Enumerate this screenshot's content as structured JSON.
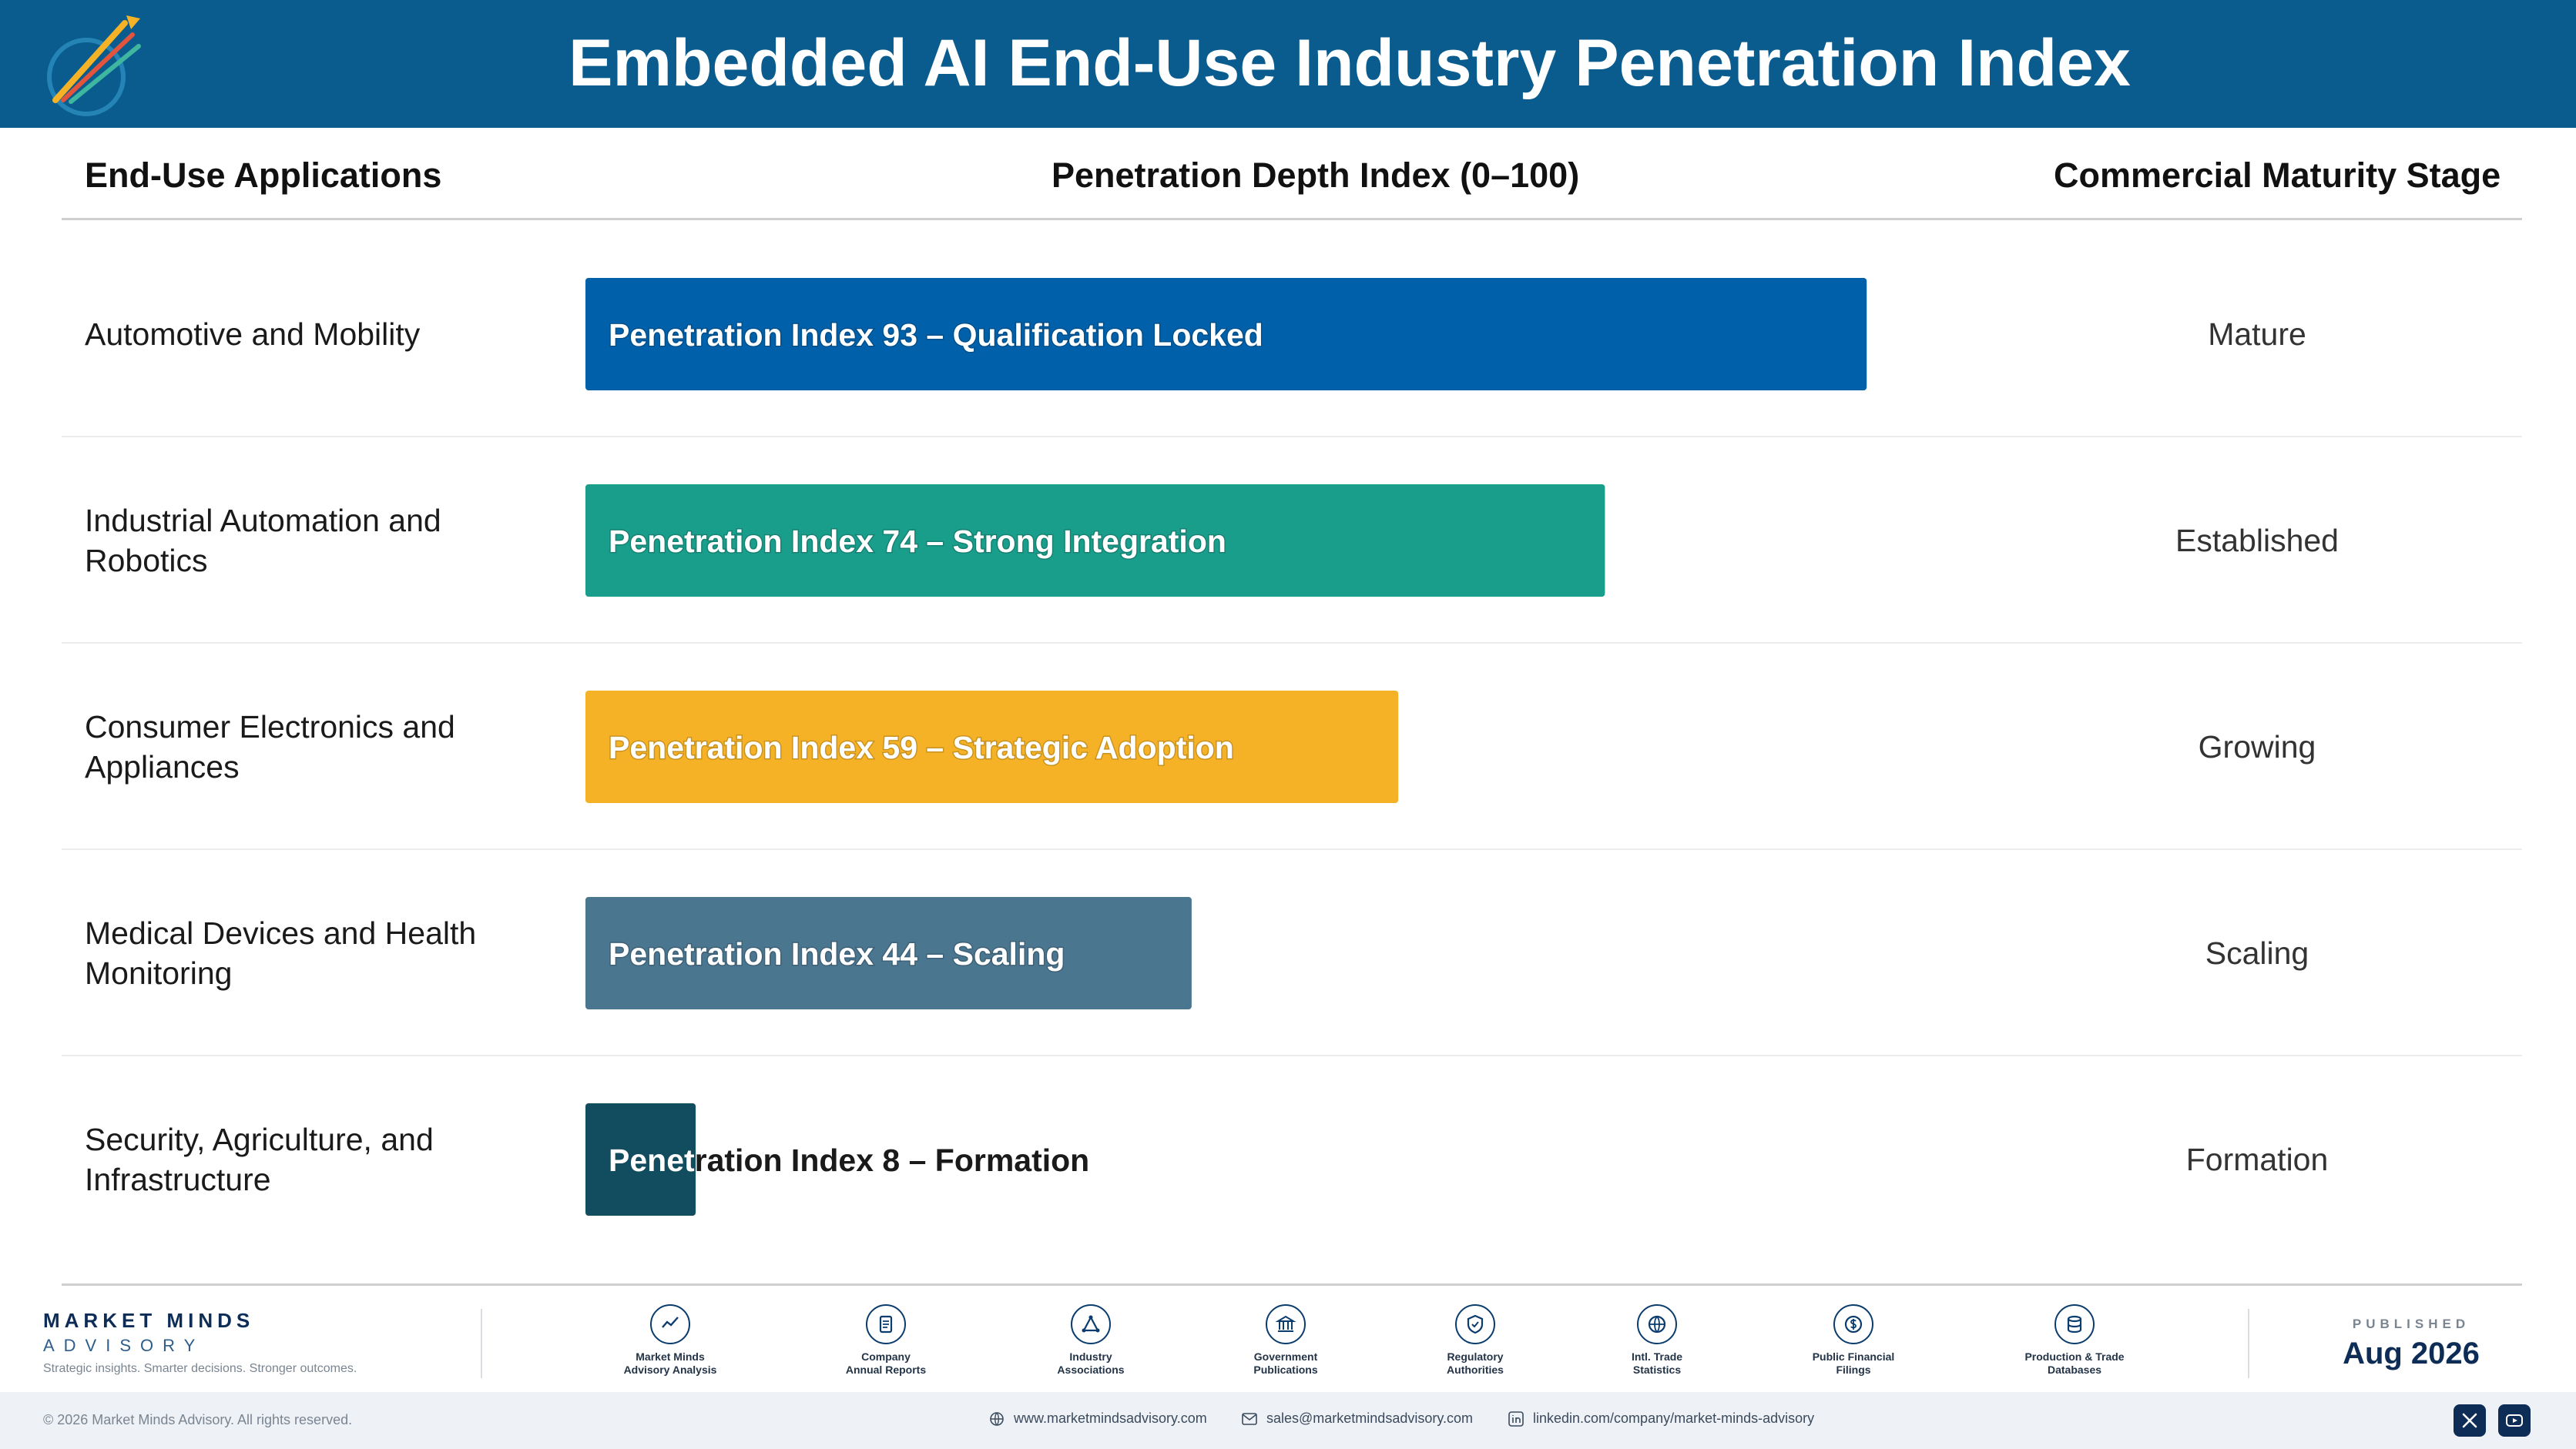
{
  "header": {
    "title": "Embedded AI End-Use Industry Penetration Index",
    "logo_text": "Market Minds Advisory"
  },
  "columns": {
    "applications": "End-Use Applications",
    "index": "Penetration Depth Index (0–100)",
    "stage": "Commercial Maturity Stage"
  },
  "chart_data": {
    "type": "bar",
    "orientation": "horizontal",
    "title": "Embedded AI End-Use Industry Penetration Index",
    "xlabel": "Penetration Depth Index (0–100)",
    "xlim": [
      0,
      100
    ],
    "grid": false,
    "categories": [
      "Automotive and Mobility",
      "Industrial Automation and Robotics",
      "Consumer Electronics and Appliances",
      "Medical Devices and Health Monitoring",
      "Security, Agriculture, and Infrastructure"
    ],
    "values": [
      93,
      74,
      59,
      44,
      8
    ],
    "bar_labels": [
      "Penetration Index 93 – Qualification Locked",
      "Penetration Index 74 – Strong Integration",
      "Penetration Index 59 – Strategic Adoption",
      "Penetration Index 44 – Scaling",
      "Penetration Index 8 – Formation"
    ],
    "stages": [
      "Mature",
      "Established",
      "Growing",
      "Scaling",
      "Formation"
    ],
    "colors": [
      "#0061aa",
      "#1a9e8c",
      "#f6b226",
      "#4b7690",
      "#114d5f"
    ]
  },
  "footer": {
    "brand_name": "MARKET MINDS",
    "brand_sub": "ADVISORY",
    "tagline": "Strategic insights. Smarter decisions. Stronger outcomes.",
    "sources": [
      {
        "label": "Market Minds\nAdvisory Analysis",
        "icon": "chart-line-icon"
      },
      {
        "label": "Company\nAnnual Reports",
        "icon": "document-icon"
      },
      {
        "label": "Industry\nAssociations",
        "icon": "network-icon"
      },
      {
        "label": "Government\nPublications",
        "icon": "building-icon"
      },
      {
        "label": "Regulatory\nAuthorities",
        "icon": "shield-icon"
      },
      {
        "label": "Intl. Trade\nStatistics",
        "icon": "globe-icon"
      },
      {
        "label": "Public Financial\nFilings",
        "icon": "dollar-icon"
      },
      {
        "label": "Production & Trade\nDatabases",
        "icon": "database-icon"
      }
    ],
    "published_label": "PUBLISHED",
    "published_date": "Aug 2026",
    "copyright": "© 2026 Market Minds Advisory. All rights reserved.",
    "website": "www.marketmindsadvisory.com",
    "email": "sales@marketmindsadvisory.com",
    "linkedin": "linkedin.com/company/market-minds-advisory"
  }
}
